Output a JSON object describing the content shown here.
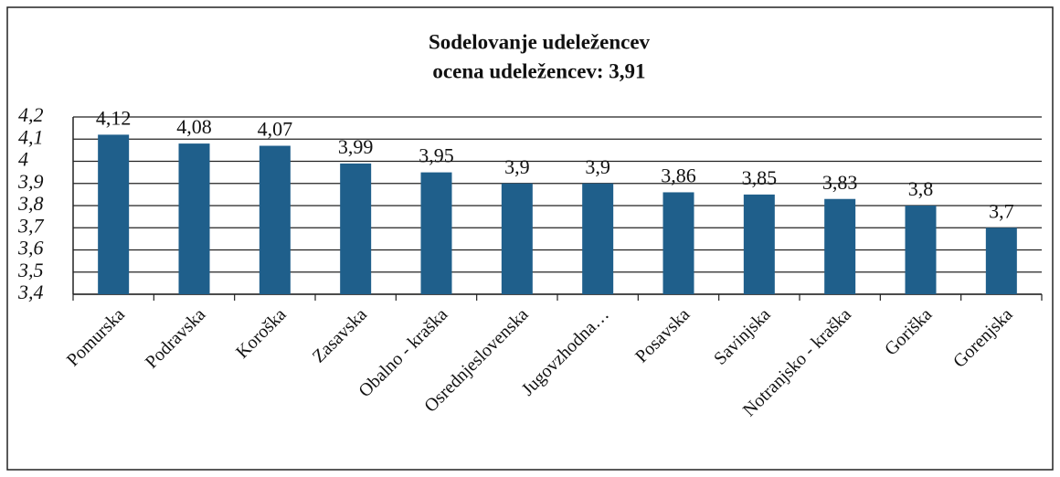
{
  "chart_data": {
    "type": "bar",
    "title": "Sodelovanje udeležencev",
    "subtitle": "ocena udeležencev:  3,91",
    "categories": [
      "Pomurska",
      "Podravska",
      "Koroška",
      "Zasavska",
      "Obalno - kraška",
      "Osrednjeslovenska",
      "Jugovzhodna…",
      "Posavska",
      "Savinjska",
      "Notranjsko - kraška",
      "Goriška",
      "Gorenjska"
    ],
    "values": [
      4.12,
      4.08,
      4.07,
      3.99,
      3.95,
      3.9,
      3.9,
      3.86,
      3.85,
      3.83,
      3.8,
      3.7
    ],
    "value_labels": [
      "4,12",
      "4,08",
      "4,07",
      "3,99",
      "3,95",
      "3,9",
      "3,9",
      "3,86",
      "3,85",
      "3,83",
      "3,8",
      "3,7"
    ],
    "color": "#1f5f8b",
    "ylim": [
      3.4,
      4.2
    ],
    "yticks": [
      {
        "value": 3.4,
        "label": "3,4"
      },
      {
        "value": 3.5,
        "label": "3,5"
      },
      {
        "value": 3.6,
        "label": "3,6"
      },
      {
        "value": 3.7,
        "label": "3,7"
      },
      {
        "value": 3.8,
        "label": "3,8"
      },
      {
        "value": 3.9,
        "label": "3,9"
      },
      4,
      {
        "value": 4.1,
        "label": "4,1"
      },
      {
        "value": 4.2,
        "label": "4,2"
      }
    ],
    "grid": true
  }
}
